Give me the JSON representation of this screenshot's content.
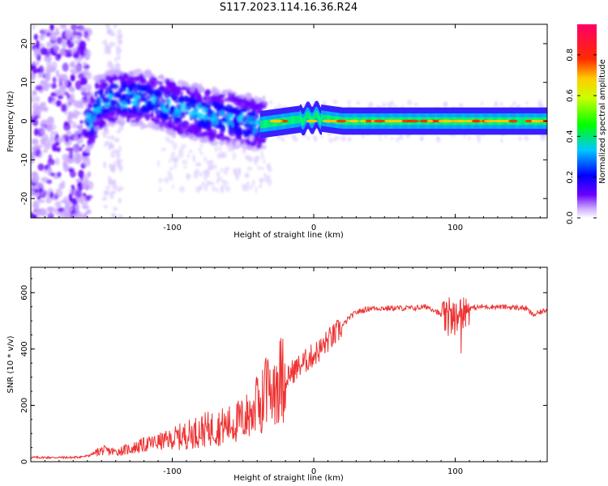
{
  "title": "S117.2023.114.16.36.R24",
  "chart_data": [
    {
      "type": "heatmap",
      "xlabel": "Height of straight line (km)",
      "ylabel": "Frequency (Hz)",
      "xlim": [
        -200,
        165
      ],
      "ylim": [
        -25,
        25
      ],
      "x_ticks": [
        "-100",
        "0",
        "100"
      ],
      "y_ticks": [
        "-20",
        "-10",
        "0",
        "10",
        "20"
      ],
      "colorbar": {
        "label": "Normalized spectral amplitude",
        "range": [
          0,
          0.95
        ],
        "ticks": [
          "0.0",
          "0.2",
          "0.4",
          "0.6",
          "0.8"
        ],
        "colors": [
          "#ffffff",
          "#6a00ff",
          "#0000ff",
          "#00ffff",
          "#00ff00",
          "#ffff00",
          "#ff0000",
          "#ff00aa"
        ]
      },
      "description_points": {
        "band_center_freq_hz": [
          [
            -155,
            4
          ],
          [
            -140,
            6
          ],
          [
            -125,
            6
          ],
          [
            -110,
            5
          ],
          [
            -95,
            3
          ],
          [
            -80,
            2
          ],
          [
            -65,
            1
          ],
          [
            -50,
            0
          ],
          [
            -40,
            -1
          ],
          [
            -20,
            0
          ],
          [
            0,
            1
          ],
          [
            20,
            0
          ],
          [
            60,
            0
          ],
          [
            100,
            0
          ],
          [
            140,
            0
          ],
          [
            165,
            0
          ]
        ]
      }
    },
    {
      "type": "line",
      "xlabel": "Height of straight line (km)",
      "ylabel": "SNR (10 * v/v)",
      "xlim": [
        -200,
        165
      ],
      "ylim": [
        0,
        690
      ],
      "x_ticks": [
        "-100",
        "0",
        "100"
      ],
      "y_ticks": [
        "0",
        "200",
        "400",
        "600"
      ],
      "color": "#ee3333",
      "series": [
        {
          "x": [
            -200,
            -190,
            -180,
            -170,
            -160,
            -155,
            -150,
            -140,
            -130,
            -120,
            -110,
            -100,
            -90,
            -80,
            -70,
            -60,
            -50,
            -45,
            -40,
            -35,
            -30,
            -25,
            -20,
            -15,
            -10,
            -5,
            0,
            5,
            10,
            15,
            20,
            25,
            30,
            40,
            50,
            60,
            70,
            80,
            85,
            90,
            95,
            100,
            105,
            110,
            120,
            130,
            140,
            150,
            155,
            160,
            165
          ],
          "y": [
            15,
            15,
            15,
            15,
            20,
            30,
            40,
            35,
            45,
            60,
            70,
            80,
            95,
            110,
            120,
            130,
            150,
            170,
            200,
            230,
            260,
            290,
            300,
            320,
            340,
            360,
            380,
            400,
            430,
            450,
            480,
            510,
            530,
            545,
            545,
            545,
            545,
            550,
            540,
            520,
            500,
            510,
            530,
            545,
            550,
            550,
            548,
            545,
            520,
            530,
            540
          ]
        }
      ]
    }
  ]
}
